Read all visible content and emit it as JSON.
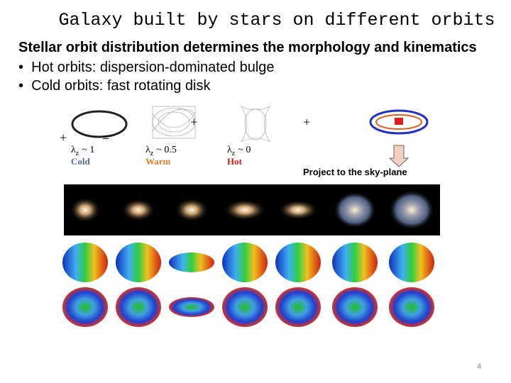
{
  "header": {
    "title": "Galaxy built by stars on different orbits"
  },
  "body": {
    "lead": "Stellar orbit distribution determines the morphology and kinematics",
    "bullets": [
      "Hot orbits: dispersion-dominated bulge",
      "Cold orbits: fast rotating disk"
    ]
  },
  "figure": {
    "operators": [
      "+",
      "=",
      "+",
      "+"
    ],
    "orbits": [
      {
        "symbol": "λ",
        "subscript": "z",
        "value": "~ 1",
        "label": "Cold"
      },
      {
        "symbol": "λ",
        "subscript": "z",
        "value": "~ 0.5",
        "label": "Warm"
      },
      {
        "symbol": "λ",
        "subscript": "z",
        "value": "~ 0",
        "label": "Hot"
      }
    ],
    "projection_caption": "Project to the sky-plane"
  },
  "footer": {
    "page_number": "4"
  }
}
